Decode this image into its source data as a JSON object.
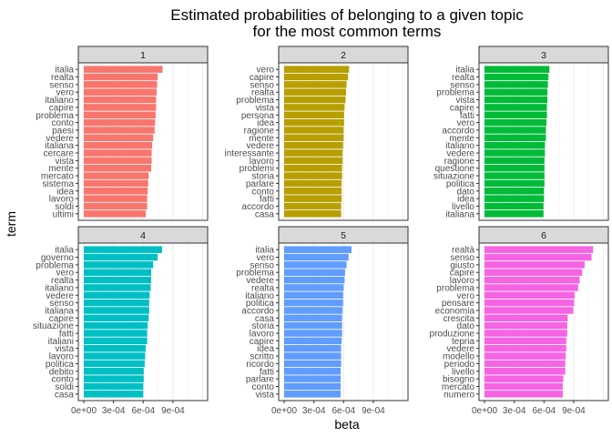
{
  "chart_data": {
    "type": "bar",
    "orientation": "horizontal",
    "title": "Estimated probabilities of belonging to a given topic",
    "subtitle": "for the most common terms",
    "xlabel": "beta",
    "ylabel": "term",
    "xlim": [
      0,
      0.00125
    ],
    "x_ticks": [
      0,
      0.0003,
      0.0006,
      0.0009
    ],
    "x_tick_labels": [
      "0e+00",
      "3e-04",
      "6e-04",
      "9e-04"
    ],
    "grid": true,
    "legend": "none",
    "facets": [
      {
        "name": "1",
        "color": "#F8766D",
        "terms": [
          "italia",
          "realta",
          "senso",
          "vero",
          "italiano",
          "capire",
          "problema",
          "conto",
          "paesi",
          "vedere",
          "italiana",
          "cercare",
          "vista",
          "mente",
          "mercato",
          "sistema",
          "idea",
          "lavoro",
          "soldi",
          "ultimi"
        ],
        "values": [
          0.000795,
          0.000745,
          0.00074,
          0.000735,
          0.00073,
          0.00073,
          0.000725,
          0.00072,
          0.000715,
          0.0007,
          0.00069,
          0.000685,
          0.000685,
          0.00068,
          0.000655,
          0.00065,
          0.000645,
          0.00064,
          0.00064,
          0.000625
        ]
      },
      {
        "name": "2",
        "color": "#B79F00",
        "terms": [
          "vero",
          "capire",
          "senso",
          "realta",
          "problema",
          "vista",
          "persona",
          "idea",
          "ragione",
          "mente",
          "vedere",
          "interessante",
          "lavoro",
          "problemi",
          "storia",
          "parlare",
          "conto",
          "fatti",
          "accordo",
          "casa"
        ],
        "values": [
          0.000655,
          0.000645,
          0.00063,
          0.000625,
          0.00062,
          0.00061,
          0.000605,
          0.000605,
          0.0006,
          0.0006,
          0.000595,
          0.00059,
          0.00059,
          0.000585,
          0.000585,
          0.00058,
          0.00058,
          0.00058,
          0.000575,
          0.000575
        ]
      },
      {
        "name": "3",
        "color": "#00BA38",
        "terms": [
          "italia",
          "realta",
          "senso",
          "problema",
          "vista",
          "capire",
          "fatti",
          "vero",
          "accordo",
          "mente",
          "italiano",
          "vedere",
          "ragione",
          "questione",
          "situazione",
          "politica",
          "dato",
          "idea",
          "livello",
          "italiana"
        ],
        "values": [
          0.000655,
          0.000645,
          0.00064,
          0.000635,
          0.000635,
          0.00063,
          0.00063,
          0.000625,
          0.00062,
          0.00062,
          0.00061,
          0.00061,
          0.000605,
          0.000605,
          0.000605,
          0.000605,
          0.0006,
          0.0006,
          0.000595,
          0.000595
        ]
      },
      {
        "name": "4",
        "color": "#00BFC4",
        "terms": [
          "italia",
          "governo",
          "problema",
          "vero",
          "realta",
          "italiano",
          "vedere",
          "senso",
          "italiana",
          "capire",
          "situazione",
          "fatti",
          "italiani",
          "vista",
          "lavoro",
          "politica",
          "debito",
          "conto",
          "soldi",
          "casa"
        ],
        "values": [
          0.00079,
          0.000745,
          0.0007,
          0.00068,
          0.00068,
          0.000675,
          0.000665,
          0.00066,
          0.00066,
          0.000655,
          0.000645,
          0.00064,
          0.00064,
          0.000625,
          0.00062,
          0.000615,
          0.000605,
          0.000605,
          0.0006,
          0.0006
        ]
      },
      {
        "name": "5",
        "color": "#619CFF",
        "terms": [
          "italia",
          "vero",
          "senso",
          "problema",
          "vedere",
          "realta",
          "italiano",
          "politica",
          "accordo",
          "casa",
          "storia",
          "lavoro",
          "capire",
          "idea",
          "scritto",
          "ricordo",
          "fatti",
          "parlare",
          "conto",
          "vista"
        ],
        "values": [
          0.00068,
          0.00065,
          0.00063,
          0.000615,
          0.00061,
          0.0006,
          0.000595,
          0.000595,
          0.00059,
          0.000585,
          0.000585,
          0.000585,
          0.00058,
          0.000575,
          0.000575,
          0.000575,
          0.00057,
          0.00057,
          0.00057,
          0.00057
        ]
      },
      {
        "name": "6",
        "color": "#F564E3",
        "terms": [
          "realtà",
          "senso",
          "giusto",
          "capire",
          "lavoro",
          "problema",
          "vero",
          "pensare",
          "economia",
          "crescita",
          "dato",
          "produzione",
          "tepria",
          "vedere",
          "modello",
          "periodo",
          "livello",
          "bisogno",
          "mercato",
          "numero"
        ],
        "values": [
          0.001095,
          0.00108,
          0.00101,
          0.000985,
          0.00096,
          0.000945,
          0.00091,
          0.000905,
          0.000895,
          0.00084,
          0.000835,
          0.000835,
          0.000825,
          0.000825,
          0.00082,
          0.000815,
          0.000815,
          0.000795,
          0.00079,
          0.00079
        ]
      }
    ]
  }
}
